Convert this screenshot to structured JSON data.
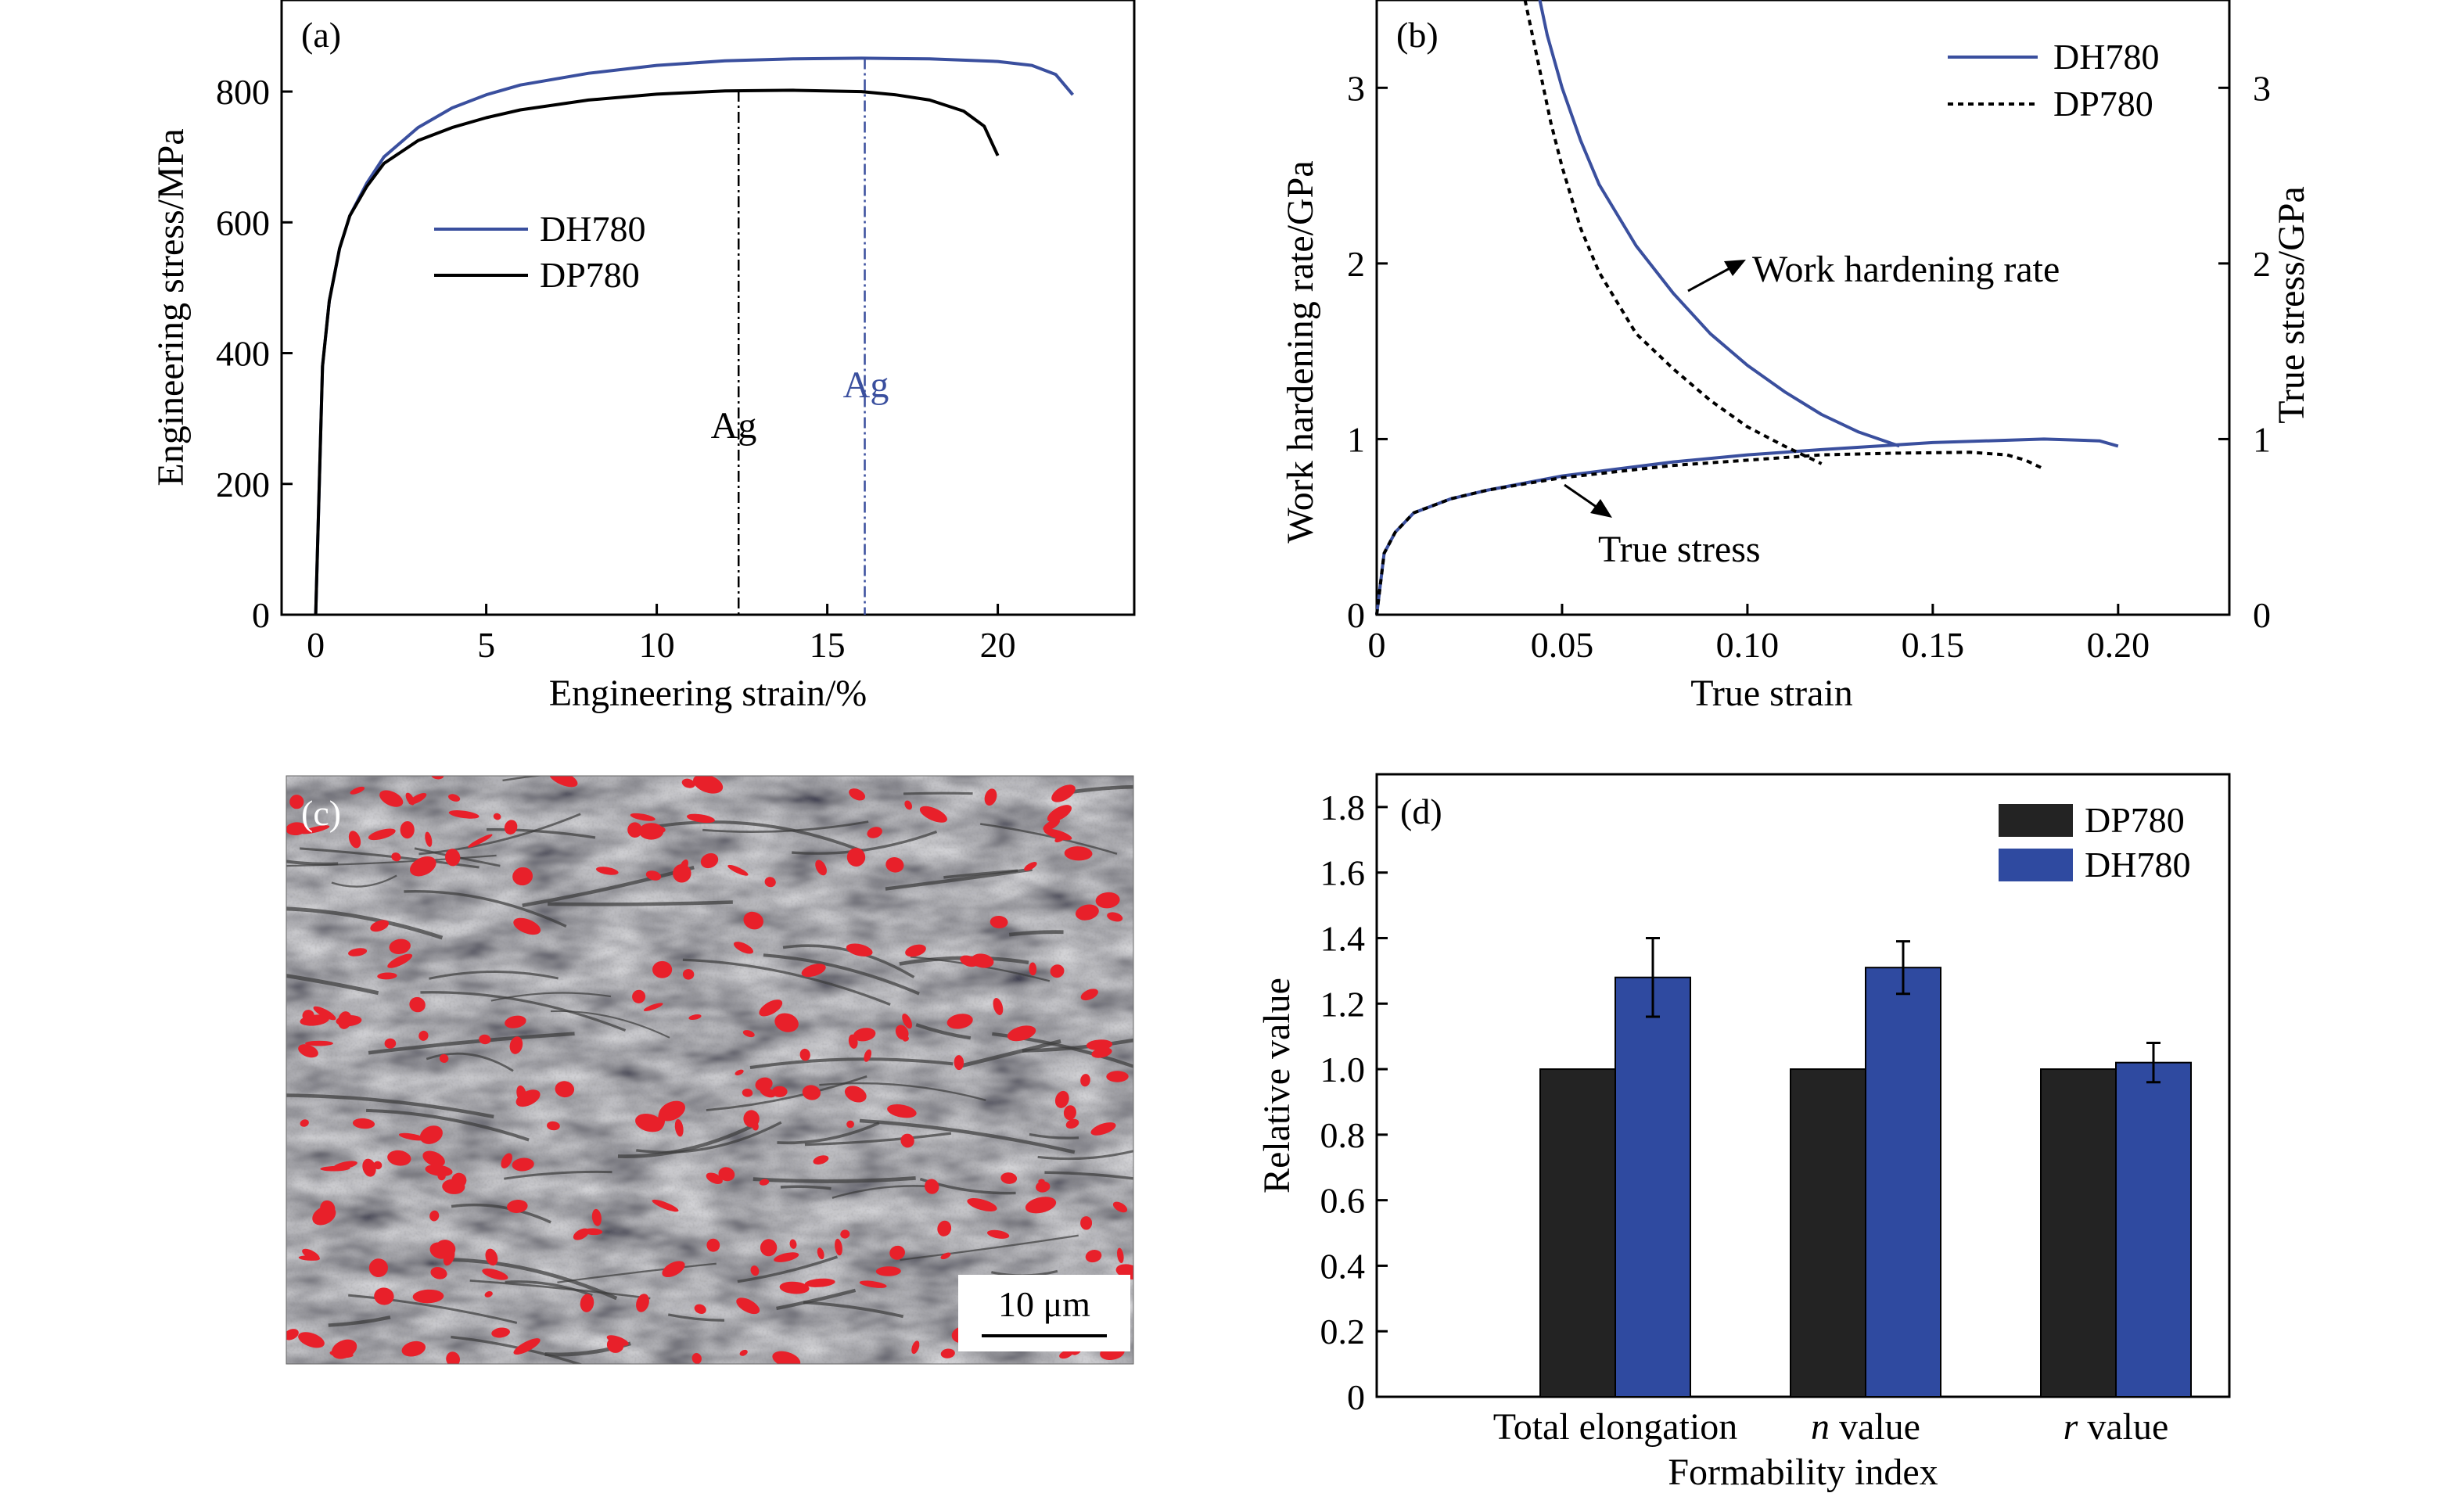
{
  "chart_data": [
    {
      "panel": "(a)",
      "type": "line",
      "xlabel": "Engineering strain/%",
      "ylabel": "Engineering stress/MPa",
      "xlim": [
        -1,
        24
      ],
      "ylim": [
        0,
        940
      ],
      "xticks": [
        0,
        5,
        10,
        15,
        20
      ],
      "yticks": [
        0,
        200,
        400,
        600,
        800
      ],
      "legend_position": "center-left",
      "series": [
        {
          "name": "DH780",
          "color": "#3a4f9e",
          "x": [
            0,
            0.2,
            0.4,
            0.7,
            1,
            1.5,
            2,
            3,
            4,
            5,
            6,
            8,
            10,
            12,
            14,
            16,
            18,
            20,
            21,
            21.7,
            22.2
          ],
          "y": [
            0,
            380,
            480,
            560,
            610,
            660,
            700,
            745,
            775,
            795,
            810,
            828,
            840,
            847,
            850,
            851,
            850,
            846,
            840,
            826,
            795
          ]
        },
        {
          "name": "DP780",
          "color": "#000000",
          "x": [
            0,
            0.2,
            0.4,
            0.7,
            1,
            1.5,
            2,
            3,
            4,
            5,
            6,
            8,
            10,
            12,
            14,
            16,
            17,
            18,
            19,
            19.6,
            20
          ],
          "y": [
            0,
            380,
            480,
            560,
            610,
            655,
            690,
            725,
            745,
            760,
            772,
            787,
            796,
            801,
            802,
            800,
            795,
            787,
            770,
            747,
            702
          ]
        }
      ],
      "annotations": [
        {
          "text": "Ag",
          "x": 12.4,
          "color": "#000000",
          "style": "dash-dot"
        },
        {
          "text": "Ag",
          "x": 16.1,
          "color": "#3a4f9e",
          "style": "dash-dot"
        }
      ]
    },
    {
      "panel": "(b)",
      "type": "line",
      "xlabel": "True strain",
      "ylabel": "Work hardening rate/GPa",
      "y2label": "True stress/GPa",
      "xlim": [
        0,
        0.23
      ],
      "ylim": [
        0,
        3.5
      ],
      "y2lim": [
        0,
        3.5
      ],
      "xticks": [
        "0",
        "0.05",
        "0.10",
        "0.15",
        "0.20"
      ],
      "yticks": [
        0,
        1,
        2,
        3
      ],
      "legend_position": "top-right",
      "series": [
        {
          "name": "DH780",
          "color": "#3a4f9e",
          "kind": "true stress",
          "x": [
            0,
            0.002,
            0.005,
            0.01,
            0.02,
            0.03,
            0.05,
            0.08,
            0.1,
            0.12,
            0.15,
            0.18,
            0.195,
            0.2
          ],
          "y": [
            0,
            0.35,
            0.47,
            0.58,
            0.66,
            0.71,
            0.79,
            0.87,
            0.91,
            0.94,
            0.98,
            1.0,
            0.99,
            0.96
          ]
        },
        {
          "name": "DP780",
          "color": "#000000",
          "dash": "7,6",
          "kind": "true stress",
          "x": [
            0,
            0.002,
            0.005,
            0.01,
            0.02,
            0.03,
            0.05,
            0.08,
            0.1,
            0.12,
            0.14,
            0.16,
            0.17,
            0.175,
            0.18
          ],
          "y": [
            0,
            0.35,
            0.47,
            0.58,
            0.66,
            0.71,
            0.78,
            0.85,
            0.88,
            0.91,
            0.92,
            0.925,
            0.91,
            0.88,
            0.83
          ]
        },
        {
          "name": "DH780",
          "color": "#3a4f9e",
          "kind": "work hardening rate",
          "x": [
            0.044,
            0.046,
            0.05,
            0.055,
            0.06,
            0.07,
            0.08,
            0.09,
            0.1,
            0.11,
            0.12,
            0.13,
            0.141
          ],
          "y": [
            3.5,
            3.3,
            3.0,
            2.7,
            2.45,
            2.1,
            1.83,
            1.6,
            1.42,
            1.27,
            1.14,
            1.04,
            0.96
          ]
        },
        {
          "name": "DP780",
          "color": "#000000",
          "dash": "7,6",
          "kind": "work hardening rate",
          "x": [
            0.04,
            0.043,
            0.047,
            0.05,
            0.055,
            0.06,
            0.07,
            0.08,
            0.09,
            0.1,
            0.11,
            0.12
          ],
          "y": [
            3.5,
            3.2,
            2.8,
            2.55,
            2.2,
            1.95,
            1.6,
            1.4,
            1.22,
            1.07,
            0.96,
            0.86
          ]
        }
      ],
      "annotations": [
        {
          "text": "Work hardening rate",
          "arrow": true
        },
        {
          "text": "True stress",
          "arrow": true
        }
      ]
    },
    {
      "panel": "(d)",
      "type": "bar",
      "xlabel": "Formability index",
      "ylabel": "Relative value",
      "ylim": [
        0,
        1.9
      ],
      "yticks": [
        "0",
        "0.2",
        "0.4",
        "0.6",
        "0.8",
        "1.0",
        "1.2",
        "1.4",
        "1.6",
        "1.8"
      ],
      "categories": [
        {
          "prefix": "",
          "italic": "",
          "suffix": "Total elongation"
        },
        {
          "prefix": "",
          "italic": "n",
          "suffix": " value"
        },
        {
          "prefix": "",
          "italic": "r",
          "suffix": " value"
        }
      ],
      "legend_position": "top-right",
      "series": [
        {
          "name": "DP780",
          "color": "#232323",
          "values": [
            1.0,
            1.0,
            1.0
          ],
          "errors": [
            0,
            0,
            0
          ]
        },
        {
          "name": "DH780",
          "color": "#2f4aa0",
          "values": [
            1.28,
            1.31,
            1.02
          ],
          "errors": [
            0.12,
            0.08,
            0.06
          ]
        }
      ]
    }
  ],
  "panels": {
    "a": {
      "label": "(a)",
      "legend": [
        "DH780",
        "DP780"
      ],
      "ag_black": "Ag",
      "ag_blue": "Ag"
    },
    "b": {
      "label": "(b)",
      "legend": [
        "DH780",
        "DP780"
      ],
      "note_whr": "Work hardening rate",
      "note_ts": "True stress"
    },
    "c": {
      "label": "(c)",
      "scale_bar": "10 μm",
      "image_kind": "SEM micrograph",
      "phase_color": "#e8202a"
    },
    "d": {
      "label": "(d)",
      "legend": [
        "DP780",
        "DH780"
      ]
    }
  }
}
